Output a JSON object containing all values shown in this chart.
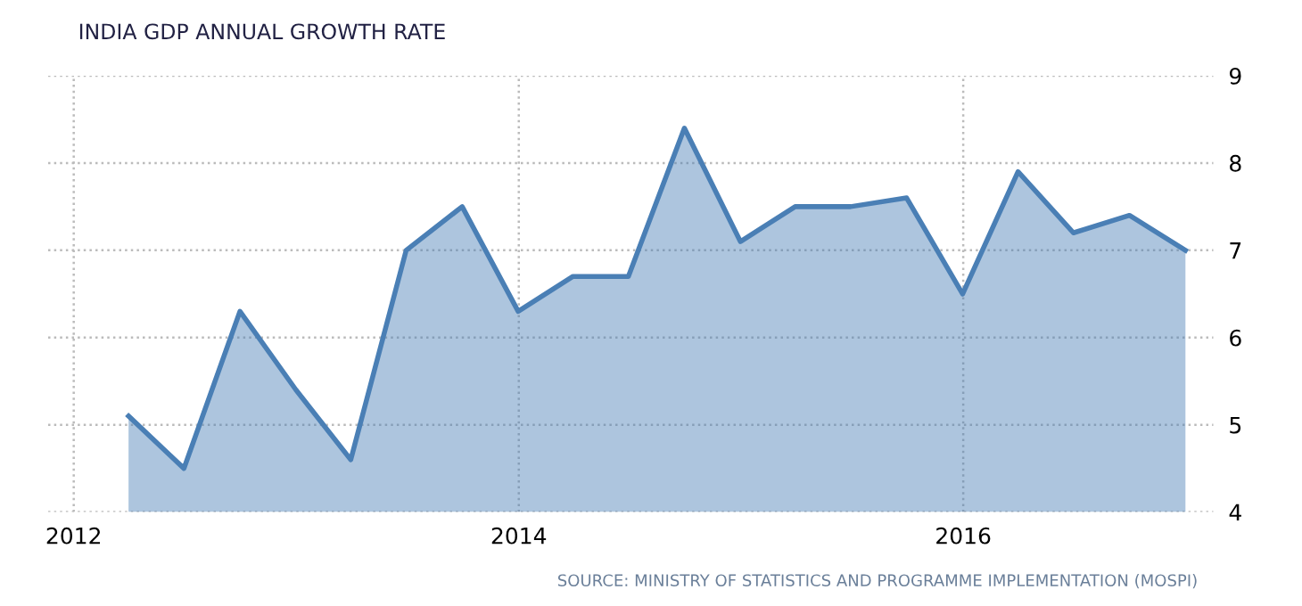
{
  "chart_data": {
    "type": "area",
    "title": "INDIA GDP ANNUAL GROWTH RATE",
    "x": [
      "2012-03-31",
      "2012-06-30",
      "2012-09-30",
      "2012-12-31",
      "2013-03-31",
      "2013-06-30",
      "2013-09-30",
      "2013-12-31",
      "2014-03-31",
      "2014-06-30",
      "2014-09-30",
      "2014-12-31",
      "2015-03-31",
      "2015-06-30",
      "2015-09-30",
      "2015-12-31",
      "2016-03-31",
      "2016-06-30",
      "2016-09-30",
      "2016-12-31"
    ],
    "series": [
      {
        "color": "#4a7fb5",
        "values": [
          5.1,
          4.5,
          6.3,
          5.4,
          4.6,
          7.0,
          7.5,
          6.3,
          6.7,
          6.7,
          8.4,
          7.1,
          7.5,
          7.5,
          7.6,
          6.5,
          7.9,
          7.2,
          7.4,
          7.0
        ]
      }
    ],
    "xlim": [
      "2011-11-20",
      "2017-02-15"
    ],
    "xticks": [
      {
        "value": "2012-01-01",
        "label": "2012"
      },
      {
        "value": "2014-01-01",
        "label": "2014"
      },
      {
        "value": "2016-01-01",
        "label": "2016"
      }
    ],
    "ylim": [
      4,
      9
    ],
    "yticks": [
      4,
      5,
      6,
      7,
      8,
      9
    ],
    "grid": true,
    "annotations": [
      "SOURCE: MINISTRY OF STATISTICS AND PROGRAMME IMPLEMENTATION (MOSPI)"
    ]
  }
}
